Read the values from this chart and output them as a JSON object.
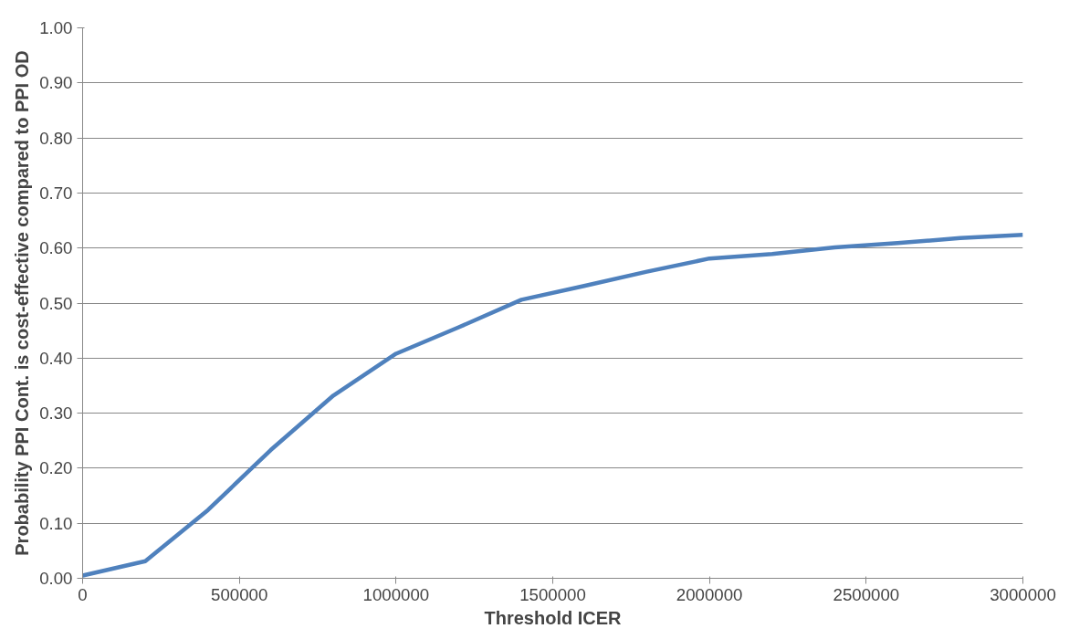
{
  "chart_data": {
    "type": "line",
    "xlabel": "Threshold ICER",
    "ylabel": "Probability PPI Cont. is cost-effective compared to PPI OD",
    "x": [
      0,
      200000,
      400000,
      600000,
      800000,
      1000000,
      1200000,
      1400000,
      1600000,
      1800000,
      2000000,
      2200000,
      2400000,
      2600000,
      2800000,
      3000000
    ],
    "series": [
      {
        "color": "#4f81bd",
        "values": [
          0.005,
          0.031,
          0.124,
          0.233,
          0.332,
          0.408,
          0.456,
          0.506,
          0.531,
          0.557,
          0.581,
          0.589,
          0.601,
          0.609,
          0.618,
          0.624
        ]
      }
    ],
    "xlim": [
      0,
      3000000
    ],
    "xticks": [
      0,
      500000,
      1000000,
      1500000,
      2000000,
      2500000,
      3000000
    ],
    "ylim": [
      0,
      1
    ],
    "yticks": [
      {
        "value": 0,
        "label": "0.00"
      },
      {
        "value": 0.1,
        "label": "0.10"
      },
      {
        "value": 0.2,
        "label": "0.20"
      },
      {
        "value": 0.3,
        "label": "0.30"
      },
      {
        "value": 0.4,
        "label": "0.40"
      },
      {
        "value": 0.5,
        "label": "0.50"
      },
      {
        "value": 0.6,
        "label": "0.60"
      },
      {
        "value": 0.7,
        "label": "0.70"
      },
      {
        "value": 0.8,
        "label": "0.80"
      },
      {
        "value": 0.9,
        "label": "0.90"
      },
      {
        "value": 1,
        "label": "1.00"
      }
    ],
    "grid": "y",
    "marker": "none",
    "line_style": "solid"
  }
}
